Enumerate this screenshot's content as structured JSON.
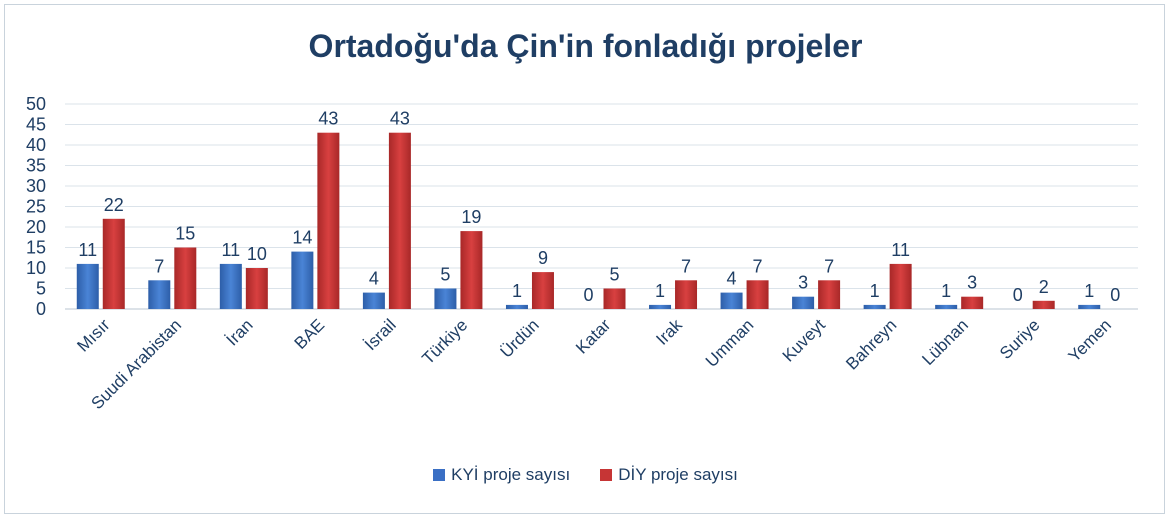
{
  "chart_data": {
    "type": "bar",
    "title": "Ortadoğu'da Çin'in fonladığı projeler",
    "categories": [
      "Mısır",
      "Suudi Arabistan",
      "İran",
      "BAE",
      "İsrail",
      "Türkiye",
      "Ürdün",
      "Katar",
      "Irak",
      "Umman",
      "Kuveyt",
      "Bahreyn",
      "Lübnan",
      "Suriye",
      "Yemen"
    ],
    "series": [
      {
        "name": "KYİ proje sayısı",
        "color": "#3a6fc4",
        "values": [
          11,
          7,
          11,
          14,
          4,
          5,
          1,
          0,
          1,
          4,
          3,
          1,
          1,
          0,
          1
        ]
      },
      {
        "name": "DİY proje sayısı",
        "color": "#c63535",
        "values": [
          22,
          15,
          10,
          43,
          43,
          19,
          9,
          5,
          7,
          7,
          7,
          11,
          3,
          2,
          0
        ]
      }
    ],
    "ylim": [
      0,
      50
    ],
    "yticks": [
      0,
      5,
      10,
      15,
      20,
      25,
      30,
      35,
      40,
      45,
      50
    ],
    "grid": true,
    "legend": "bottom"
  }
}
